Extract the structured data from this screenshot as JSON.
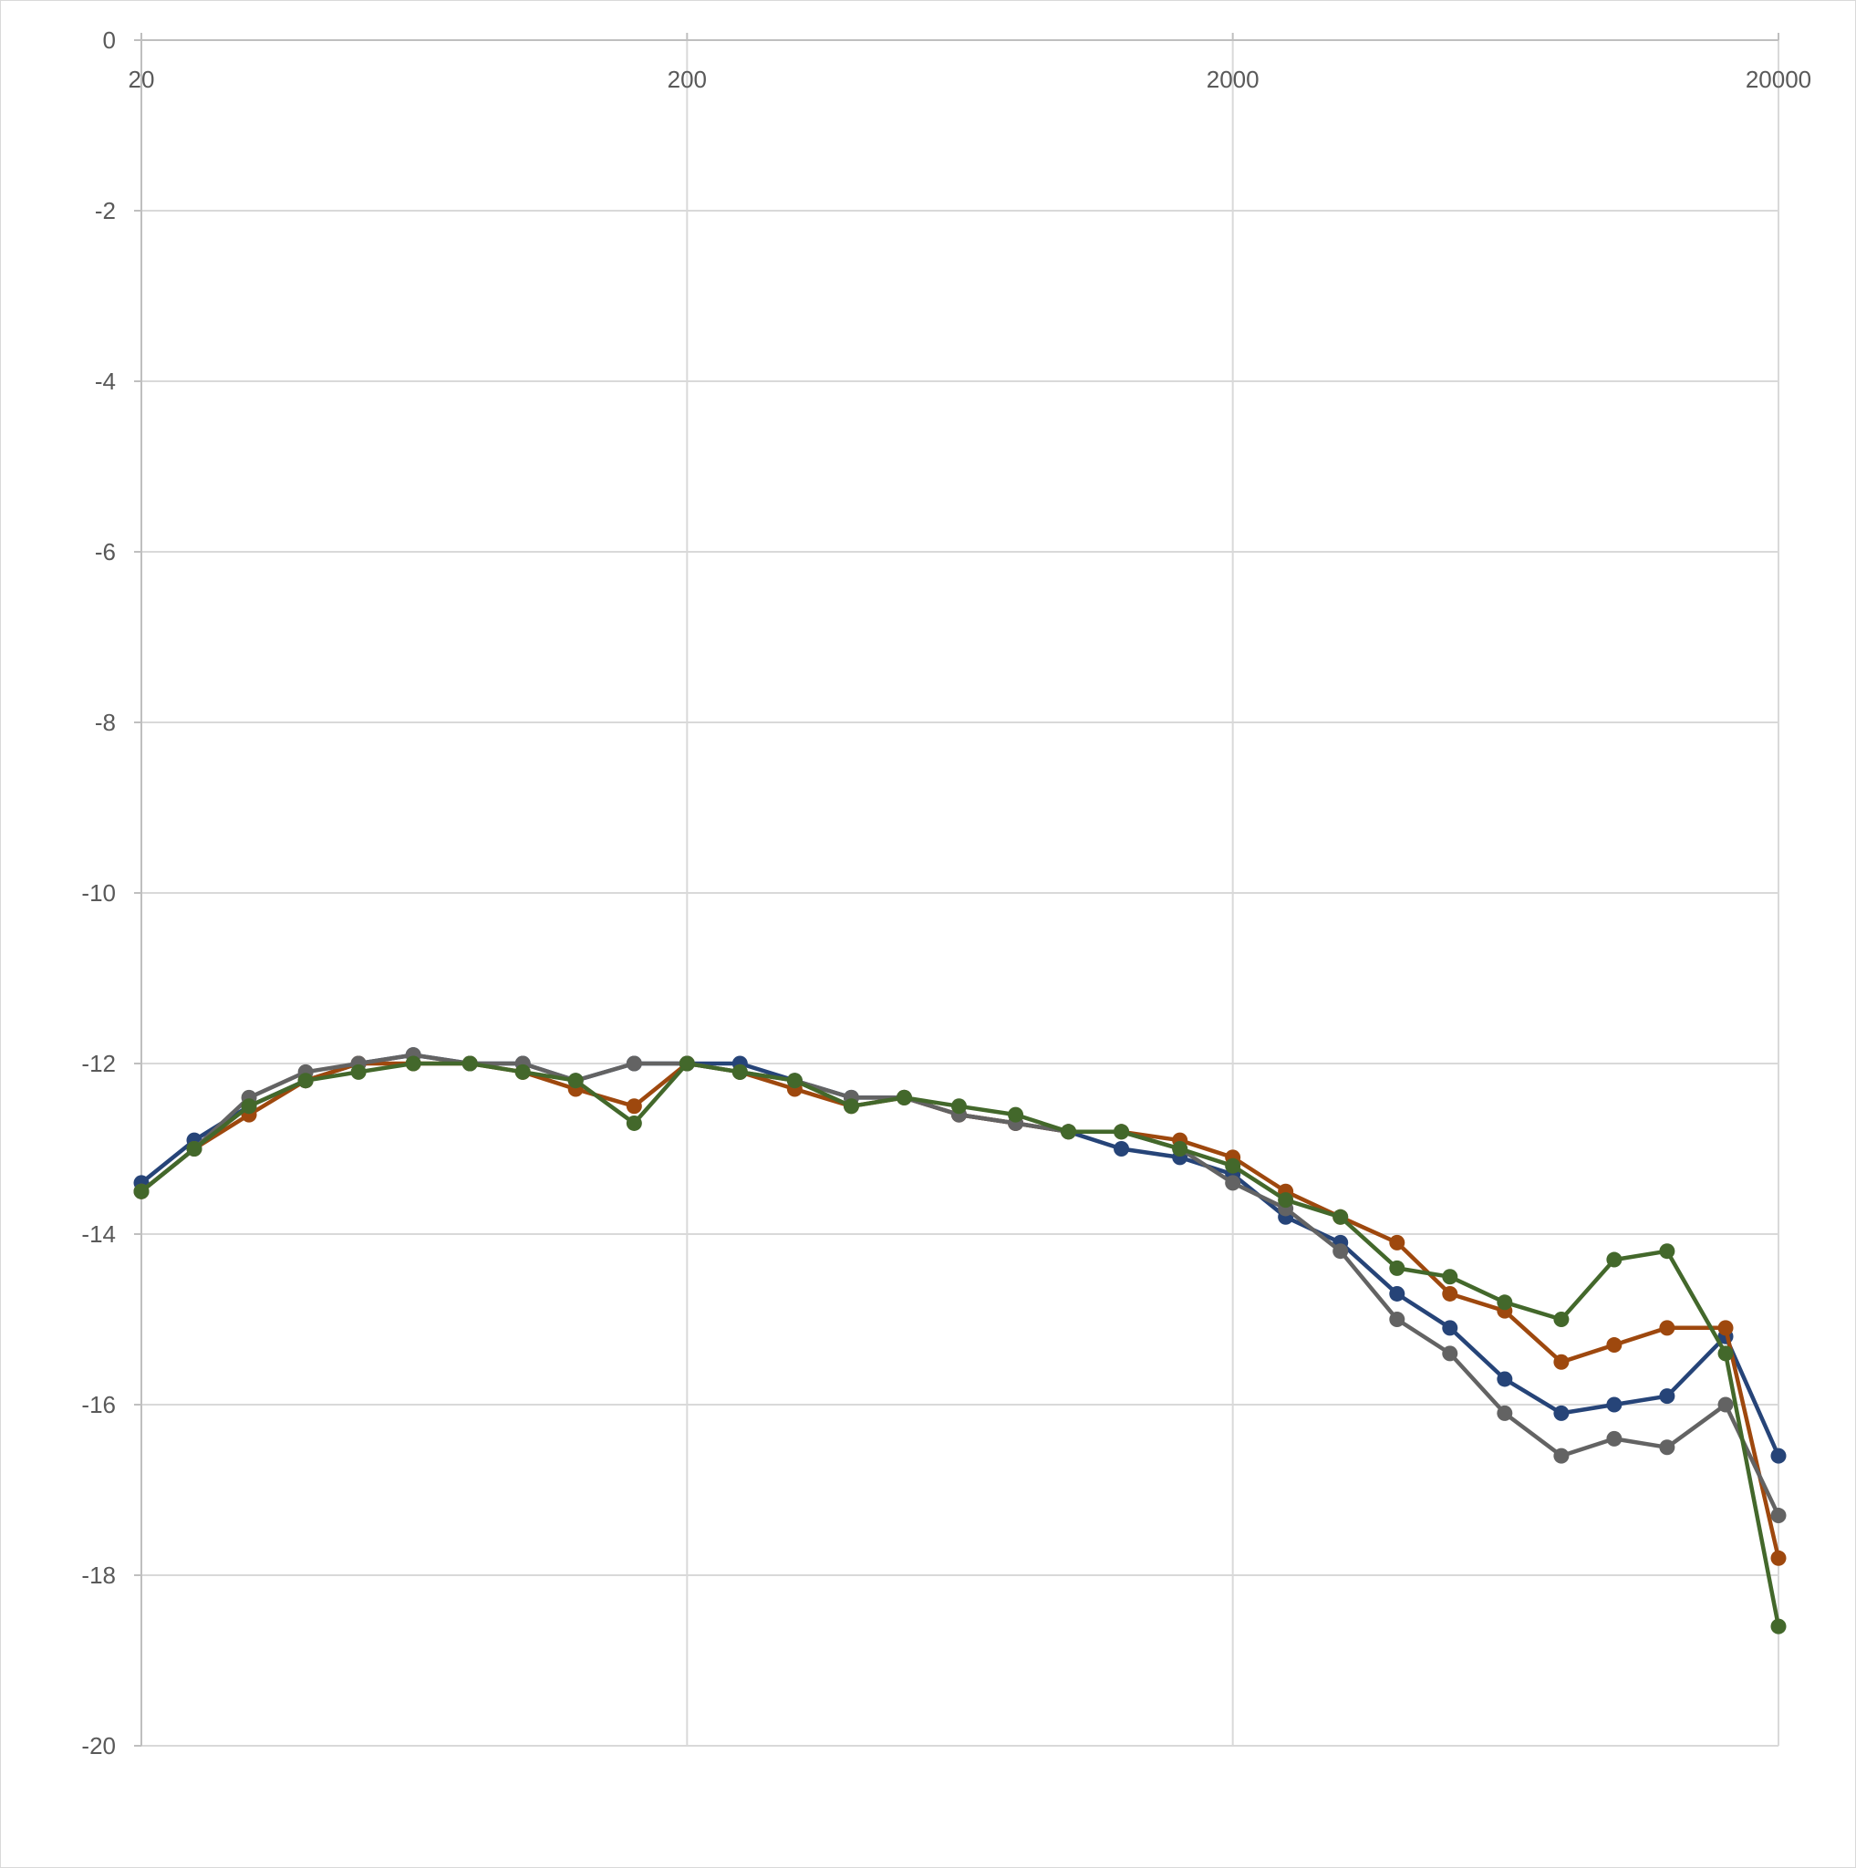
{
  "chart_data": {
    "type": "line",
    "title": "",
    "xlabel": "",
    "ylabel": "",
    "x_scale": "log",
    "xlim": [
      20,
      20000
    ],
    "ylim": [
      -20,
      0
    ],
    "grid": true,
    "legend": "none",
    "x_ticks": [
      20,
      200,
      2000,
      20000
    ],
    "x_tick_labels": [
      "20",
      "200",
      "2000",
      "20000"
    ],
    "y_ticks": [
      0,
      -2,
      -4,
      -6,
      -8,
      -10,
      -12,
      -14,
      -16,
      -18,
      -20
    ],
    "y_tick_labels": [
      "0",
      "-2",
      "-4",
      "-6",
      "-8",
      "-10",
      "-12",
      "-14",
      "-16",
      "-18",
      "-20"
    ],
    "x": [
      20,
      25,
      31.5,
      40,
      50,
      63,
      80,
      100,
      125,
      160,
      200,
      250,
      315,
      400,
      500,
      630,
      800,
      1000,
      1250,
      1600,
      2000,
      2500,
      3150,
      4000,
      5000,
      6300,
      8000,
      10000,
      12500,
      16000,
      20000
    ],
    "series": [
      {
        "color": "#264478",
        "values": [
          -13.4,
          -12.9,
          -12.5,
          -12.2,
          -12.0,
          -11.9,
          -12.0,
          -12.0,
          -12.2,
          -12.0,
          -12.0,
          -12.0,
          -12.2,
          -12.4,
          -12.4,
          -12.6,
          -12.7,
          -12.8,
          -13.0,
          -13.1,
          -13.3,
          -13.8,
          -14.1,
          -14.7,
          -15.1,
          -15.7,
          -16.1,
          -16.0,
          -15.9,
          -15.2,
          -16.6
        ]
      },
      {
        "color": "#9E480E",
        "values": [
          -13.5,
          -13.0,
          -12.6,
          -12.2,
          -12.0,
          -12.0,
          -12.0,
          -12.1,
          -12.3,
          -12.5,
          -12.0,
          -12.1,
          -12.3,
          -12.5,
          -12.4,
          -12.6,
          -12.7,
          -12.8,
          -12.8,
          -12.9,
          -13.1,
          -13.5,
          -13.8,
          -14.1,
          -14.7,
          -14.9,
          -15.5,
          -15.3,
          -15.1,
          -15.1,
          -17.8
        ]
      },
      {
        "color": "#636363",
        "values": [
          -13.5,
          -13.0,
          -12.4,
          -12.1,
          -12.0,
          -11.9,
          -12.0,
          -12.0,
          -12.2,
          -12.0,
          -12.0,
          -12.1,
          -12.2,
          -12.4,
          -12.4,
          -12.6,
          -12.7,
          -12.8,
          -12.8,
          -13.0,
          -13.4,
          -13.7,
          -14.2,
          -15.0,
          -15.4,
          -16.1,
          -16.6,
          -16.4,
          -16.5,
          -16.0,
          -17.3
        ]
      },
      {
        "color": "#43682B",
        "values": [
          -13.5,
          -13.0,
          -12.5,
          -12.2,
          -12.1,
          -12.0,
          -12.0,
          -12.1,
          -12.2,
          -12.7,
          -12.0,
          -12.1,
          -12.2,
          -12.5,
          -12.4,
          -12.5,
          -12.6,
          -12.8,
          -12.8,
          -13.0,
          -13.2,
          -13.6,
          -13.8,
          -14.4,
          -14.5,
          -14.8,
          -15.0,
          -14.3,
          -14.2,
          -15.4,
          -18.6
        ]
      }
    ]
  }
}
